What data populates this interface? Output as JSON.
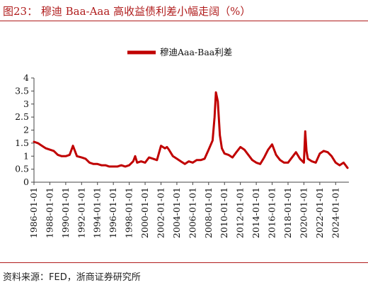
{
  "header": {
    "title": "图23：   穆迪 Baa-Aaa 高收益债利差小幅走阔（%）"
  },
  "footer": {
    "source": "资料来源：FED，浙商证券研究所"
  },
  "colors": {
    "accent": "#b01c1c",
    "series": "#c00000"
  },
  "chart_data": {
    "type": "line",
    "title": "",
    "xlabel": "",
    "ylabel": "",
    "ylim": [
      0,
      4
    ],
    "xlim": [
      "1986-01-01",
      "2025-09-01"
    ],
    "yticks": [
      "0",
      "0.5",
      "1",
      "1.5",
      "2",
      "2.5",
      "3",
      "3.5",
      "4"
    ],
    "xticks": [
      "1986-01-01",
      "1988-01-01",
      "1990-01-01",
      "1992-01-01",
      "1994-01-01",
      "1996-01-01",
      "1998-01-01",
      "2000-01-01",
      "2002-01-01",
      "2004-01-01",
      "2006-01-01",
      "2008-01-01",
      "2010-01-01",
      "2012-01-01",
      "2014-01-01",
      "2016-01-01",
      "2018-01-01",
      "2020-01-01",
      "2022-01-01",
      "2024-01-01"
    ],
    "legend": {
      "position": "top-center",
      "label": "穆迪Aaa-Baa利差"
    },
    "grid": false,
    "series": [
      {
        "name": "穆迪Aaa-Baa利差",
        "x": [
          "1986-01-01",
          "1986-07-01",
          "1987-01-01",
          "1987-07-01",
          "1988-01-01",
          "1988-07-01",
          "1989-01-01",
          "1989-07-01",
          "1990-01-01",
          "1990-07-01",
          "1990-12-01",
          "1991-06-01",
          "1992-01-01",
          "1992-07-01",
          "1993-01-01",
          "1993-07-01",
          "1994-01-01",
          "1994-07-01",
          "1995-01-01",
          "1995-07-01",
          "1996-01-01",
          "1996-07-01",
          "1997-01-01",
          "1997-07-01",
          "1998-01-01",
          "1998-07-01",
          "1998-10-01",
          "1999-01-01",
          "1999-07-01",
          "2000-01-01",
          "2000-07-01",
          "2001-01-01",
          "2001-07-01",
          "2002-01-01",
          "2002-07-01",
          "2002-10-01",
          "2003-01-01",
          "2003-07-01",
          "2004-01-01",
          "2004-07-01",
          "2005-01-01",
          "2005-07-01",
          "2006-01-01",
          "2006-07-01",
          "2007-01-01",
          "2007-07-01",
          "2008-01-01",
          "2008-07-01",
          "2008-10-01",
          "2008-12-01",
          "2009-03-01",
          "2009-06-01",
          "2009-09-01",
          "2010-01-01",
          "2010-07-01",
          "2011-01-01",
          "2011-07-01",
          "2012-01-01",
          "2012-07-01",
          "2013-01-01",
          "2013-07-01",
          "2014-01-01",
          "2014-07-01",
          "2015-01-01",
          "2015-07-01",
          "2016-01-01",
          "2016-07-01",
          "2017-01-01",
          "2017-07-01",
          "2018-01-01",
          "2018-07-01",
          "2019-01-01",
          "2019-07-01",
          "2020-01-01",
          "2020-03-01",
          "2020-05-01",
          "2020-07-01",
          "2021-01-01",
          "2021-07-01",
          "2022-01-01",
          "2022-07-01",
          "2023-01-01",
          "2023-07-01",
          "2024-01-01",
          "2024-07-01",
          "2025-01-01",
          "2025-07-01"
        ],
        "y": [
          1.55,
          1.5,
          1.4,
          1.3,
          1.25,
          1.2,
          1.05,
          1.0,
          1.0,
          1.05,
          1.4,
          1.0,
          0.95,
          0.9,
          0.75,
          0.7,
          0.7,
          0.65,
          0.65,
          0.6,
          0.6,
          0.6,
          0.65,
          0.6,
          0.65,
          0.8,
          1.0,
          0.75,
          0.8,
          0.75,
          0.95,
          0.9,
          0.85,
          1.4,
          1.3,
          1.35,
          1.25,
          1.0,
          0.9,
          0.8,
          0.7,
          0.8,
          0.75,
          0.85,
          0.85,
          0.9,
          1.25,
          1.6,
          2.5,
          3.45,
          3.1,
          1.8,
          1.3,
          1.1,
          1.05,
          0.95,
          1.15,
          1.35,
          1.25,
          1.05,
          0.85,
          0.75,
          0.7,
          0.95,
          1.25,
          1.45,
          1.05,
          0.85,
          0.75,
          0.75,
          0.95,
          1.15,
          0.9,
          0.75,
          1.95,
          1.2,
          0.9,
          0.8,
          0.75,
          1.1,
          1.2,
          1.15,
          1.0,
          0.75,
          0.65,
          0.75,
          0.55
        ]
      }
    ]
  }
}
